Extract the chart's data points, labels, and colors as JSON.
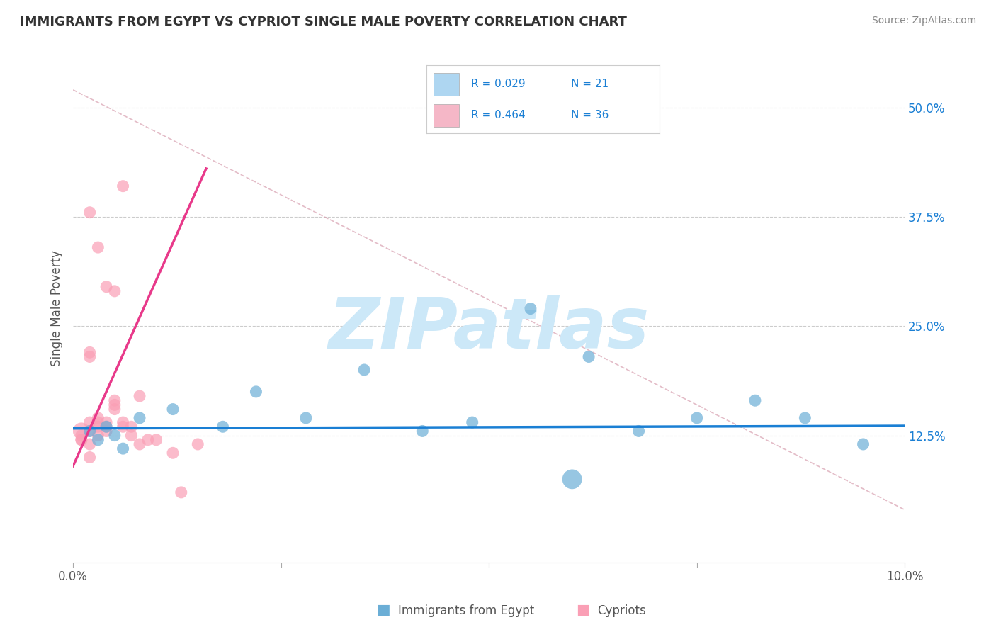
{
  "title": "IMMIGRANTS FROM EGYPT VS CYPRIOT SINGLE MALE POVERTY CORRELATION CHART",
  "source": "Source: ZipAtlas.com",
  "ylabel": "Single Male Poverty",
  "xlim": [
    0.0,
    0.1
  ],
  "ylim": [
    -0.02,
    0.56
  ],
  "ytick_labels": [
    "12.5%",
    "25.0%",
    "37.5%",
    "50.0%"
  ],
  "ytick_values": [
    0.125,
    0.25,
    0.375,
    0.5
  ],
  "legend_blue_r": "R = 0.029",
  "legend_blue_n": "N = 21",
  "legend_pink_r": "R = 0.464",
  "legend_pink_n": "N = 36",
  "legend_blue_label": "Immigrants from Egypt",
  "legend_pink_label": "Cypriots",
  "blue_scatter_x": [
    0.002,
    0.003,
    0.005,
    0.006,
    0.004,
    0.008,
    0.012,
    0.018,
    0.022,
    0.028,
    0.035,
    0.042,
    0.048,
    0.055,
    0.062,
    0.068,
    0.075,
    0.082,
    0.088,
    0.095,
    0.06
  ],
  "blue_scatter_y": [
    0.13,
    0.12,
    0.125,
    0.11,
    0.135,
    0.145,
    0.155,
    0.135,
    0.175,
    0.145,
    0.2,
    0.13,
    0.14,
    0.27,
    0.215,
    0.13,
    0.145,
    0.165,
    0.145,
    0.115,
    0.075
  ],
  "blue_scatter_sizes": [
    30,
    30,
    30,
    30,
    30,
    30,
    30,
    30,
    30,
    30,
    30,
    30,
    30,
    30,
    30,
    30,
    30,
    30,
    30,
    30,
    80
  ],
  "pink_scatter_x": [
    0.001,
    0.001,
    0.001,
    0.002,
    0.002,
    0.002,
    0.002,
    0.003,
    0.003,
    0.003,
    0.004,
    0.004,
    0.004,
    0.005,
    0.005,
    0.005,
    0.006,
    0.006,
    0.007,
    0.007,
    0.008,
    0.009,
    0.01,
    0.012,
    0.013,
    0.015,
    0.002,
    0.003,
    0.004,
    0.005,
    0.006,
    0.008,
    0.001,
    0.002,
    0.002,
    0.003
  ],
  "pink_scatter_y": [
    0.13,
    0.125,
    0.12,
    0.14,
    0.13,
    0.22,
    0.215,
    0.135,
    0.14,
    0.145,
    0.14,
    0.135,
    0.13,
    0.165,
    0.16,
    0.155,
    0.14,
    0.135,
    0.135,
    0.125,
    0.17,
    0.12,
    0.12,
    0.105,
    0.06,
    0.115,
    0.38,
    0.34,
    0.295,
    0.29,
    0.41,
    0.115,
    0.12,
    0.115,
    0.1,
    0.125
  ],
  "pink_scatter_sizes": [
    60,
    30,
    30,
    30,
    30,
    30,
    30,
    30,
    30,
    30,
    30,
    30,
    30,
    30,
    30,
    30,
    30,
    30,
    30,
    30,
    30,
    30,
    30,
    30,
    30,
    30,
    30,
    30,
    30,
    30,
    30,
    30,
    30,
    30,
    30,
    30
  ],
  "blue_line_x": [
    0.0,
    0.1
  ],
  "blue_line_y": [
    0.133,
    0.136
  ],
  "pink_line_x": [
    0.0,
    0.016
  ],
  "pink_line_y": [
    0.09,
    0.43
  ],
  "pink_dash_line_x": [
    0.0,
    0.1
  ],
  "pink_dash_line_y": [
    0.52,
    0.04
  ],
  "background_color": "#ffffff",
  "plot_bg_color": "#ffffff",
  "grid_color": "#cccccc",
  "blue_color": "#6baed6",
  "pink_color": "#fa9fb5",
  "blue_line_color": "#1a7fd4",
  "pink_line_color": "#e8398a",
  "watermark_color": "#cce8f8",
  "title_color": "#333333",
  "source_color": "#888888"
}
